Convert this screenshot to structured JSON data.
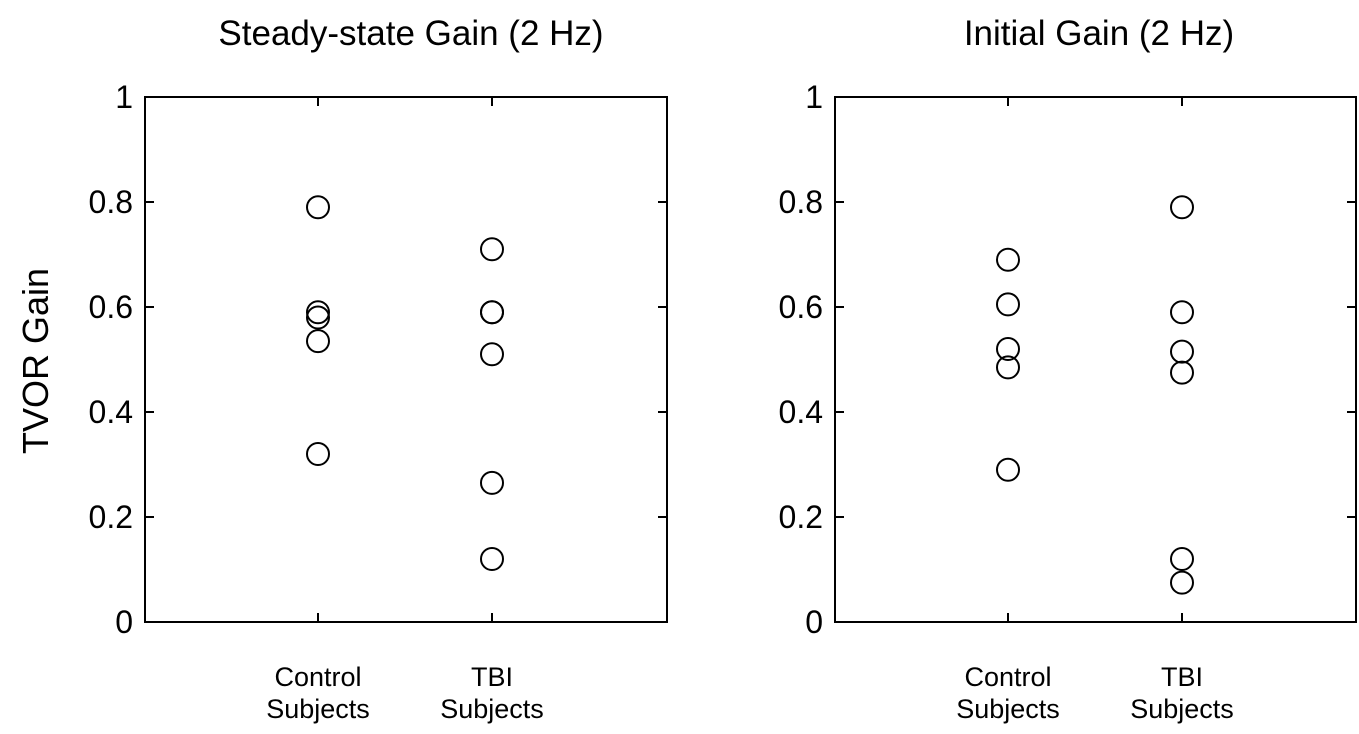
{
  "chart_data": [
    {
      "type": "scatter",
      "title": "Steady-state Gain (2 Hz)",
      "ylabel": "TVOR Gain",
      "xlabel": "",
      "categories": [
        [
          "Control",
          "Subjects"
        ],
        [
          "TBI",
          "Subjects"
        ]
      ],
      "ylim": [
        0,
        1
      ],
      "yticks": [
        "0",
        "0.2",
        "0.4",
        "0.6",
        "0.8",
        "1"
      ],
      "series": [
        {
          "values": [
            0.79,
            0.59,
            0.58,
            0.535,
            0.32
          ]
        },
        {
          "values": [
            0.71,
            0.59,
            0.59,
            0.51,
            0.265,
            0.12
          ]
        }
      ],
      "grid": false,
      "marker": "open-circle"
    },
    {
      "type": "scatter",
      "title": "Initial Gain (2 Hz)",
      "ylabel": "",
      "xlabel": "",
      "categories": [
        [
          "Control",
          "Subjects"
        ],
        [
          "TBI",
          "Subjects"
        ]
      ],
      "ylim": [
        0,
        1
      ],
      "yticks": [
        "0",
        "0.2",
        "0.4",
        "0.6",
        "0.8",
        "1"
      ],
      "series": [
        {
          "values": [
            0.69,
            0.605,
            0.52,
            0.485,
            0.29
          ]
        },
        {
          "values": [
            0.79,
            0.59,
            0.515,
            0.475,
            0.12,
            0.075
          ]
        }
      ],
      "grid": false,
      "marker": "open-circle"
    }
  ]
}
